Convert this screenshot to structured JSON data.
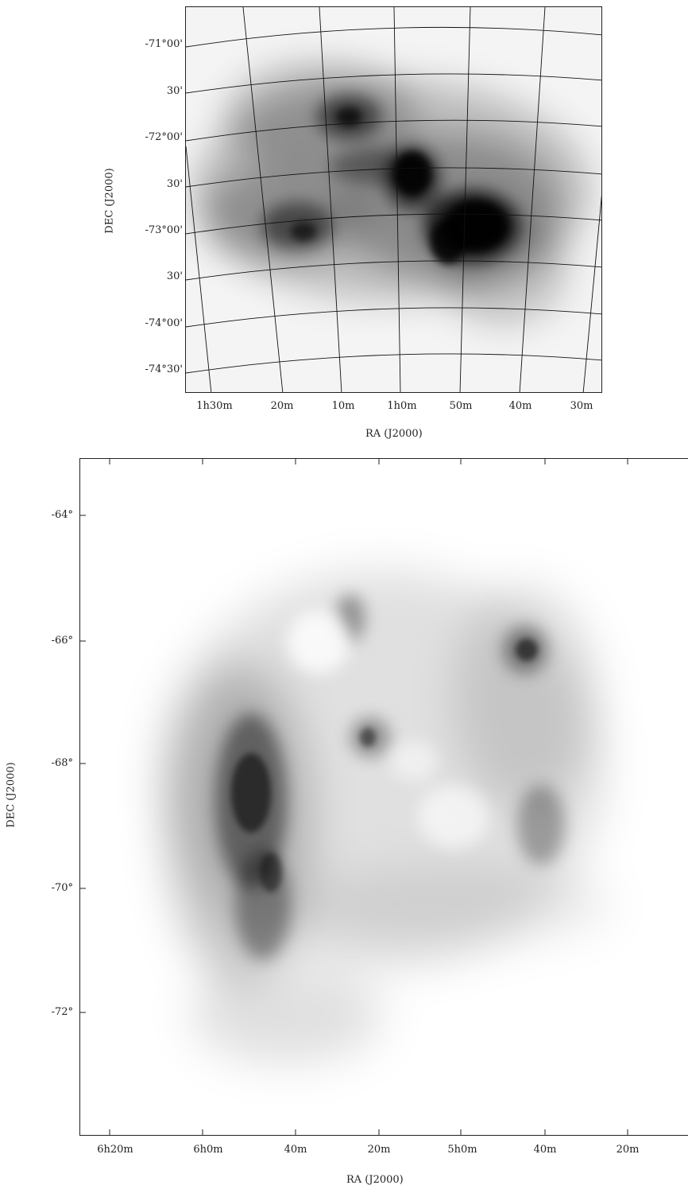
{
  "top_panel": {
    "y_ticks": [
      "-71°00'",
      "30'",
      "-72°00'",
      "30'",
      "-73°00'",
      "30'",
      "-74°00'",
      "-74°30'"
    ],
    "x_ticks": [
      "1h30m",
      "20m",
      "10m",
      "1h0m",
      "50m",
      "40m",
      "30m"
    ],
    "x_title": "RA (J2000)",
    "y_title": "DEC (J2000)",
    "colors": {
      "frame": "#222222",
      "grid": "#111111",
      "emission": "#000000"
    }
  },
  "bottom_panel": {
    "y_ticks": [
      "-64°",
      "-66°",
      "-68°",
      "-70°",
      "-72°"
    ],
    "x_ticks": [
      "6h20m",
      "6h0m",
      "40m",
      "20m",
      "5h0m",
      "40m",
      "20m"
    ],
    "x_title": "RA (J2000)",
    "y_title": "DEC (J2000)",
    "colors": {
      "frame": "#222222",
      "emission": "#000000"
    }
  }
}
